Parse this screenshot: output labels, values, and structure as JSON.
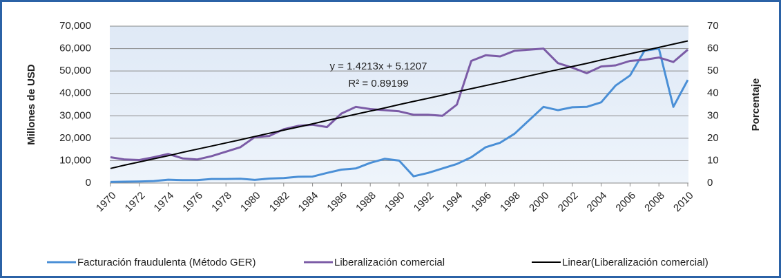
{
  "chart_data": {
    "type": "line",
    "y_label": "Millones de USD",
    "y2_label": "Porcentaje",
    "annotations": [
      "y = 1.4213x + 5.1207",
      "R² = 0.89199"
    ],
    "x": [
      1970,
      1971,
      1972,
      1973,
      1974,
      1975,
      1976,
      1977,
      1978,
      1979,
      1980,
      1981,
      1982,
      1983,
      1984,
      1985,
      1986,
      1987,
      1988,
      1989,
      1990,
      1991,
      1992,
      1993,
      1994,
      1995,
      1996,
      1997,
      1998,
      1999,
      2000,
      2001,
      2002,
      2003,
      2004,
      2005,
      2006,
      2007,
      2008,
      2009,
      2010
    ],
    "xlim": [
      1970,
      2010
    ],
    "xticks": [
      1970,
      1972,
      1974,
      1976,
      1978,
      1980,
      1982,
      1984,
      1986,
      1988,
      1990,
      1992,
      1994,
      1996,
      1998,
      2000,
      2002,
      2004,
      2006,
      2008,
      2010
    ],
    "ylim": [
      0,
      70000
    ],
    "yticks": [
      0,
      {
        "value": 10000,
        "label": "10,000"
      },
      {
        "value": 20000,
        "label": "20,000"
      },
      {
        "value": 30000,
        "label": "30,000"
      },
      {
        "value": 40000,
        "label": "40,000"
      },
      {
        "value": 50000,
        "label": "50,000"
      },
      {
        "value": 60000,
        "label": "60,000"
      },
      {
        "value": 70000,
        "label": "70,000"
      }
    ],
    "y2lim": [
      0,
      70
    ],
    "y2ticks": [
      0,
      10,
      20,
      30,
      40,
      50,
      60,
      70
    ],
    "grid": true,
    "legend": "bottom",
    "series": [
      {
        "name": "Facturación fraudulenta (Método GER)",
        "color": "#4a8fd6",
        "values": [
          500,
          600,
          700,
          900,
          1500,
          1300,
          1300,
          1800,
          1800,
          1900,
          1400,
          2000,
          2200,
          2800,
          2900,
          4500,
          6000,
          6500,
          9000,
          10800,
          10000,
          3000,
          4500,
          6500,
          8500,
          11500,
          16000,
          18000,
          22000,
          28000,
          34000,
          32500,
          33800,
          34000,
          36000,
          43500,
          48000,
          59000,
          60000,
          34000,
          46000
        ]
      },
      {
        "name": "Liberalización comercial",
        "color": "#7b5ba6",
        "axis": "y2",
        "values": [
          11.5,
          10.5,
          10.3,
          11.5,
          13,
          11,
          10.5,
          12,
          14,
          16,
          20.5,
          21,
          24,
          25.5,
          26,
          25,
          31,
          34,
          33,
          32.5,
          32,
          30.5,
          30.5,
          30,
          35,
          54.5,
          57,
          56.5,
          59,
          59.5,
          60,
          53.5,
          51.5,
          49,
          52,
          52.5,
          54.5,
          55,
          56,
          54,
          59.5
        ]
      },
      {
        "name": "Linear(Liberalización comercial)",
        "color": "#000000",
        "axis": "y2",
        "values": [
          6.5,
          8,
          9.4,
          10.8,
          12.2,
          13.7,
          15.1,
          16.5,
          17.9,
          19.3,
          20.8,
          22.2,
          23.6,
          25,
          26.4,
          27.9,
          29.3,
          30.7,
          32.1,
          33.5,
          35,
          36.4,
          37.8,
          39.2,
          40.7,
          42.1,
          43.5,
          44.9,
          46.3,
          47.8,
          49.2,
          50.6,
          52,
          53.4,
          54.9,
          56.3,
          57.7,
          59.1,
          60.5,
          62,
          63.4
        ]
      }
    ]
  }
}
